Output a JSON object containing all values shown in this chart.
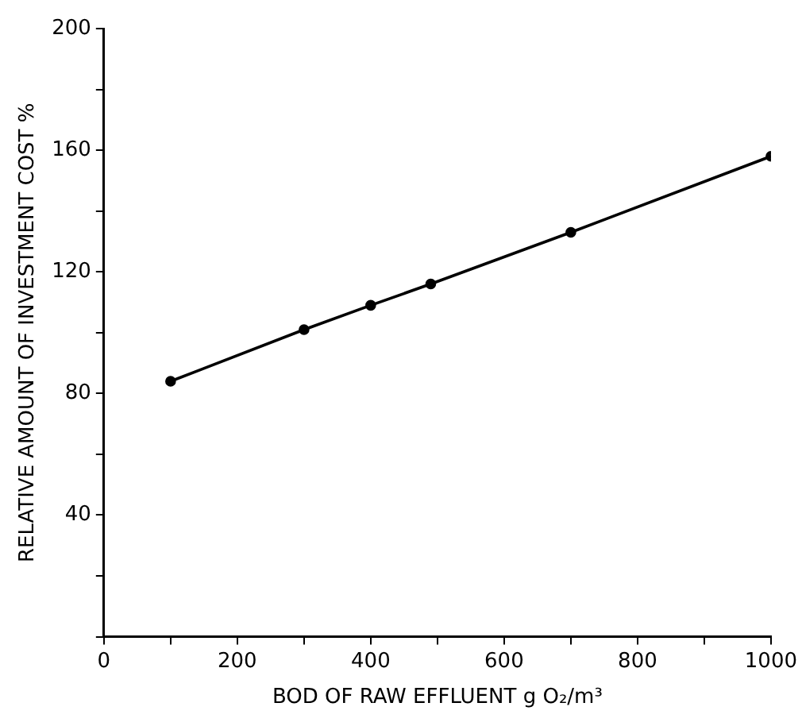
{
  "chart_data": {
    "type": "line",
    "xlabel": "BOD OF RAW EFFLUENT g O₂/m³",
    "ylabel": "RELATIVE AMOUNT OF INVESTMENT COST %",
    "x": [
      100,
      300,
      400,
      490,
      700,
      1000
    ],
    "series": [
      {
        "color": "#000000",
        "values": [
          84,
          101,
          109,
          116,
          133,
          158
        ]
      }
    ],
    "xlim": [
      0,
      1000
    ],
    "xticks": [
      0,
      {
        "value": 100,
        "label": null
      },
      200,
      {
        "value": 300,
        "label": null
      },
      400,
      {
        "value": 500,
        "label": null
      },
      600,
      {
        "value": 700,
        "label": null
      },
      800,
      {
        "value": 900,
        "label": null
      },
      1000
    ],
    "ylim": [
      0,
      200
    ],
    "yticks": [
      {
        "value": 0,
        "label": null
      },
      {
        "value": 20,
        "label": null
      },
      40,
      {
        "value": 60,
        "label": null
      },
      80,
      {
        "value": 100,
        "label": null
      },
      120,
      {
        "value": 140,
        "label": null
      },
      160,
      {
        "value": 180,
        "label": null
      },
      200
    ],
    "grid": false,
    "legend": false,
    "marker": "circle",
    "line_style": "solid"
  }
}
